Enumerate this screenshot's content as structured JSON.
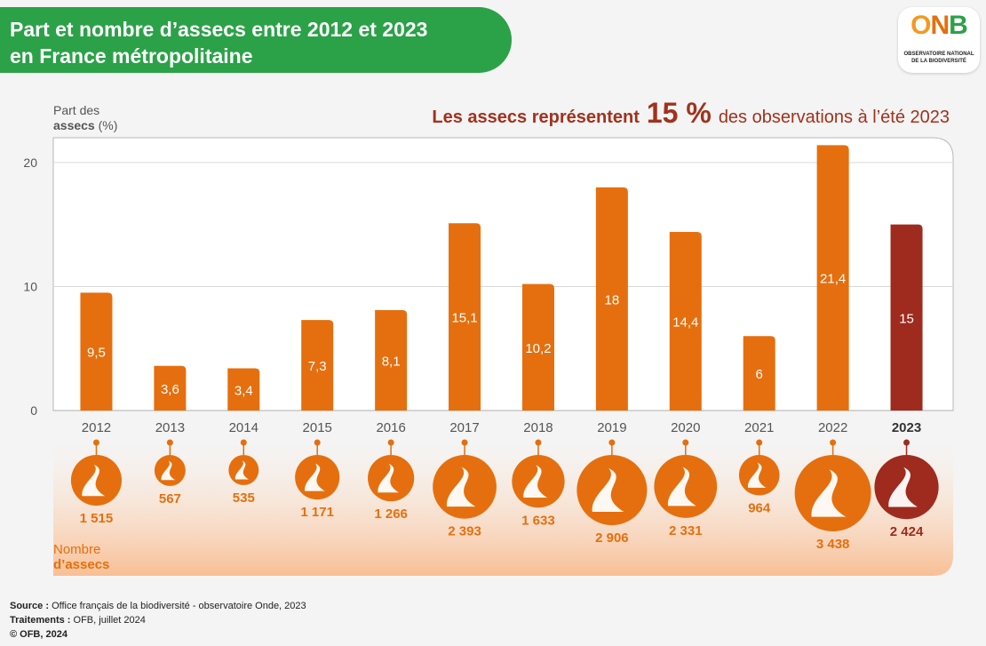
{
  "header": {
    "title_line1": "Part et nombre d’assecs entre 2012 et 2023",
    "title_line2": "en France métropolitaine"
  },
  "logo": {
    "mark": "ONB",
    "line1": "OBSERVATOIRE NATIONAL",
    "line2": "DE LA BIODIVERSITÉ"
  },
  "footer": {
    "source_label": "Source :",
    "source_text": "Office français de la biodiversité - observatoire Onde, 2023",
    "treatment_label": "Traitements :",
    "treatment_text": "OFB, juillet 2024",
    "copyright": "© OFB, 2024"
  },
  "colors": {
    "bar": "#e56f0e",
    "highlight": "#9e2b1d",
    "header_green": "#2ba148",
    "headline": "#a1321d"
  },
  "chart_data": {
    "type": "bar",
    "headline_before": "Les assecs représentent",
    "headline_value": "15 %",
    "headline_after": "des observations à l’été 2023",
    "ylabel_line1": "Part des",
    "ylabel_line2_bold": "assecs",
    "ylabel_line2_rest": " (%)",
    "ylim": [
      0,
      22
    ],
    "yticks": [
      0,
      10,
      20
    ],
    "grid": true,
    "categories": [
      "2012",
      "2013",
      "2014",
      "2015",
      "2016",
      "2017",
      "2018",
      "2019",
      "2020",
      "2021",
      "2022",
      "2023"
    ],
    "values": [
      9.5,
      3.6,
      3.4,
      7.3,
      8.1,
      15.1,
      10.2,
      18,
      14.4,
      6,
      21.4,
      15
    ],
    "value_labels": [
      "9,5",
      "3,6",
      "3,4",
      "7,3",
      "8,1",
      "15,1",
      "10,2",
      "18",
      "14,4",
      "6",
      "21,4",
      "15"
    ],
    "highlight_category": "2023",
    "counts_label_line1": "Nombre",
    "counts_label_line2": "d’assecs",
    "counts": [
      1515,
      567,
      535,
      1171,
      1266,
      2393,
      1633,
      2906,
      2331,
      964,
      3438,
      2424
    ],
    "count_labels": [
      "1 515",
      "567",
      "535",
      "1 171",
      "1 266",
      "2 393",
      "1 633",
      "2 906",
      "2 331",
      "964",
      "3 438",
      "2 424"
    ]
  }
}
